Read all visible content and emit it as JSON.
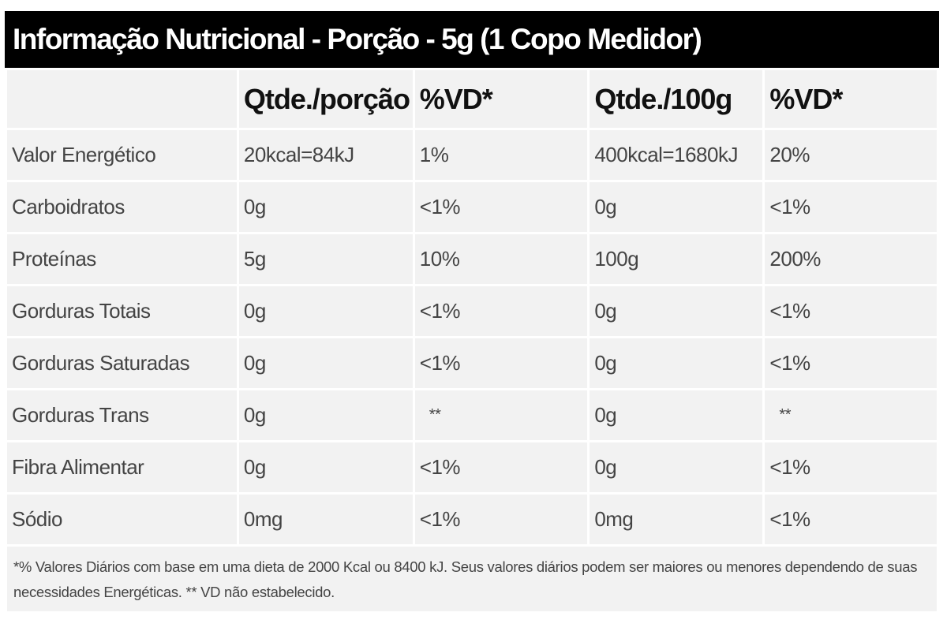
{
  "title": "Informação Nutricional - Porção - 5g (1 Copo Medidor)",
  "headers": [
    "",
    "Qtde./porção",
    "%VD*",
    "Qtde./100g",
    "%VD*"
  ],
  "rows": [
    [
      "Valor Energético",
      "20kcal=84kJ",
      "1%",
      "400kcal=1680kJ",
      "20%"
    ],
    [
      "Carboidratos",
      "0g",
      "<1%",
      "0g",
      "<1%"
    ],
    [
      "Proteínas",
      "5g",
      "10%",
      "100g",
      "200%"
    ],
    [
      "Gorduras Totais",
      "0g",
      "<1%",
      "0g",
      "<1%"
    ],
    [
      "Gorduras Saturadas",
      "0g",
      "<1%",
      "0g",
      "<1%"
    ],
    [
      "Gorduras Trans",
      "0g",
      "**",
      "0g",
      "**"
    ],
    [
      "Fibra Alimentar",
      "0g",
      "<1%",
      "0g",
      "<1%"
    ],
    [
      "Sódio",
      "0mg",
      "<1%",
      "0mg",
      "<1%"
    ]
  ],
  "footnote": "*% Valores Diários com base em uma dieta de 2000 Kcal ou 8400 kJ. Seus valores diários podem ser maiores ou menores dependendo de suas necessidades Energéticas. ** VD não estabelecido."
}
